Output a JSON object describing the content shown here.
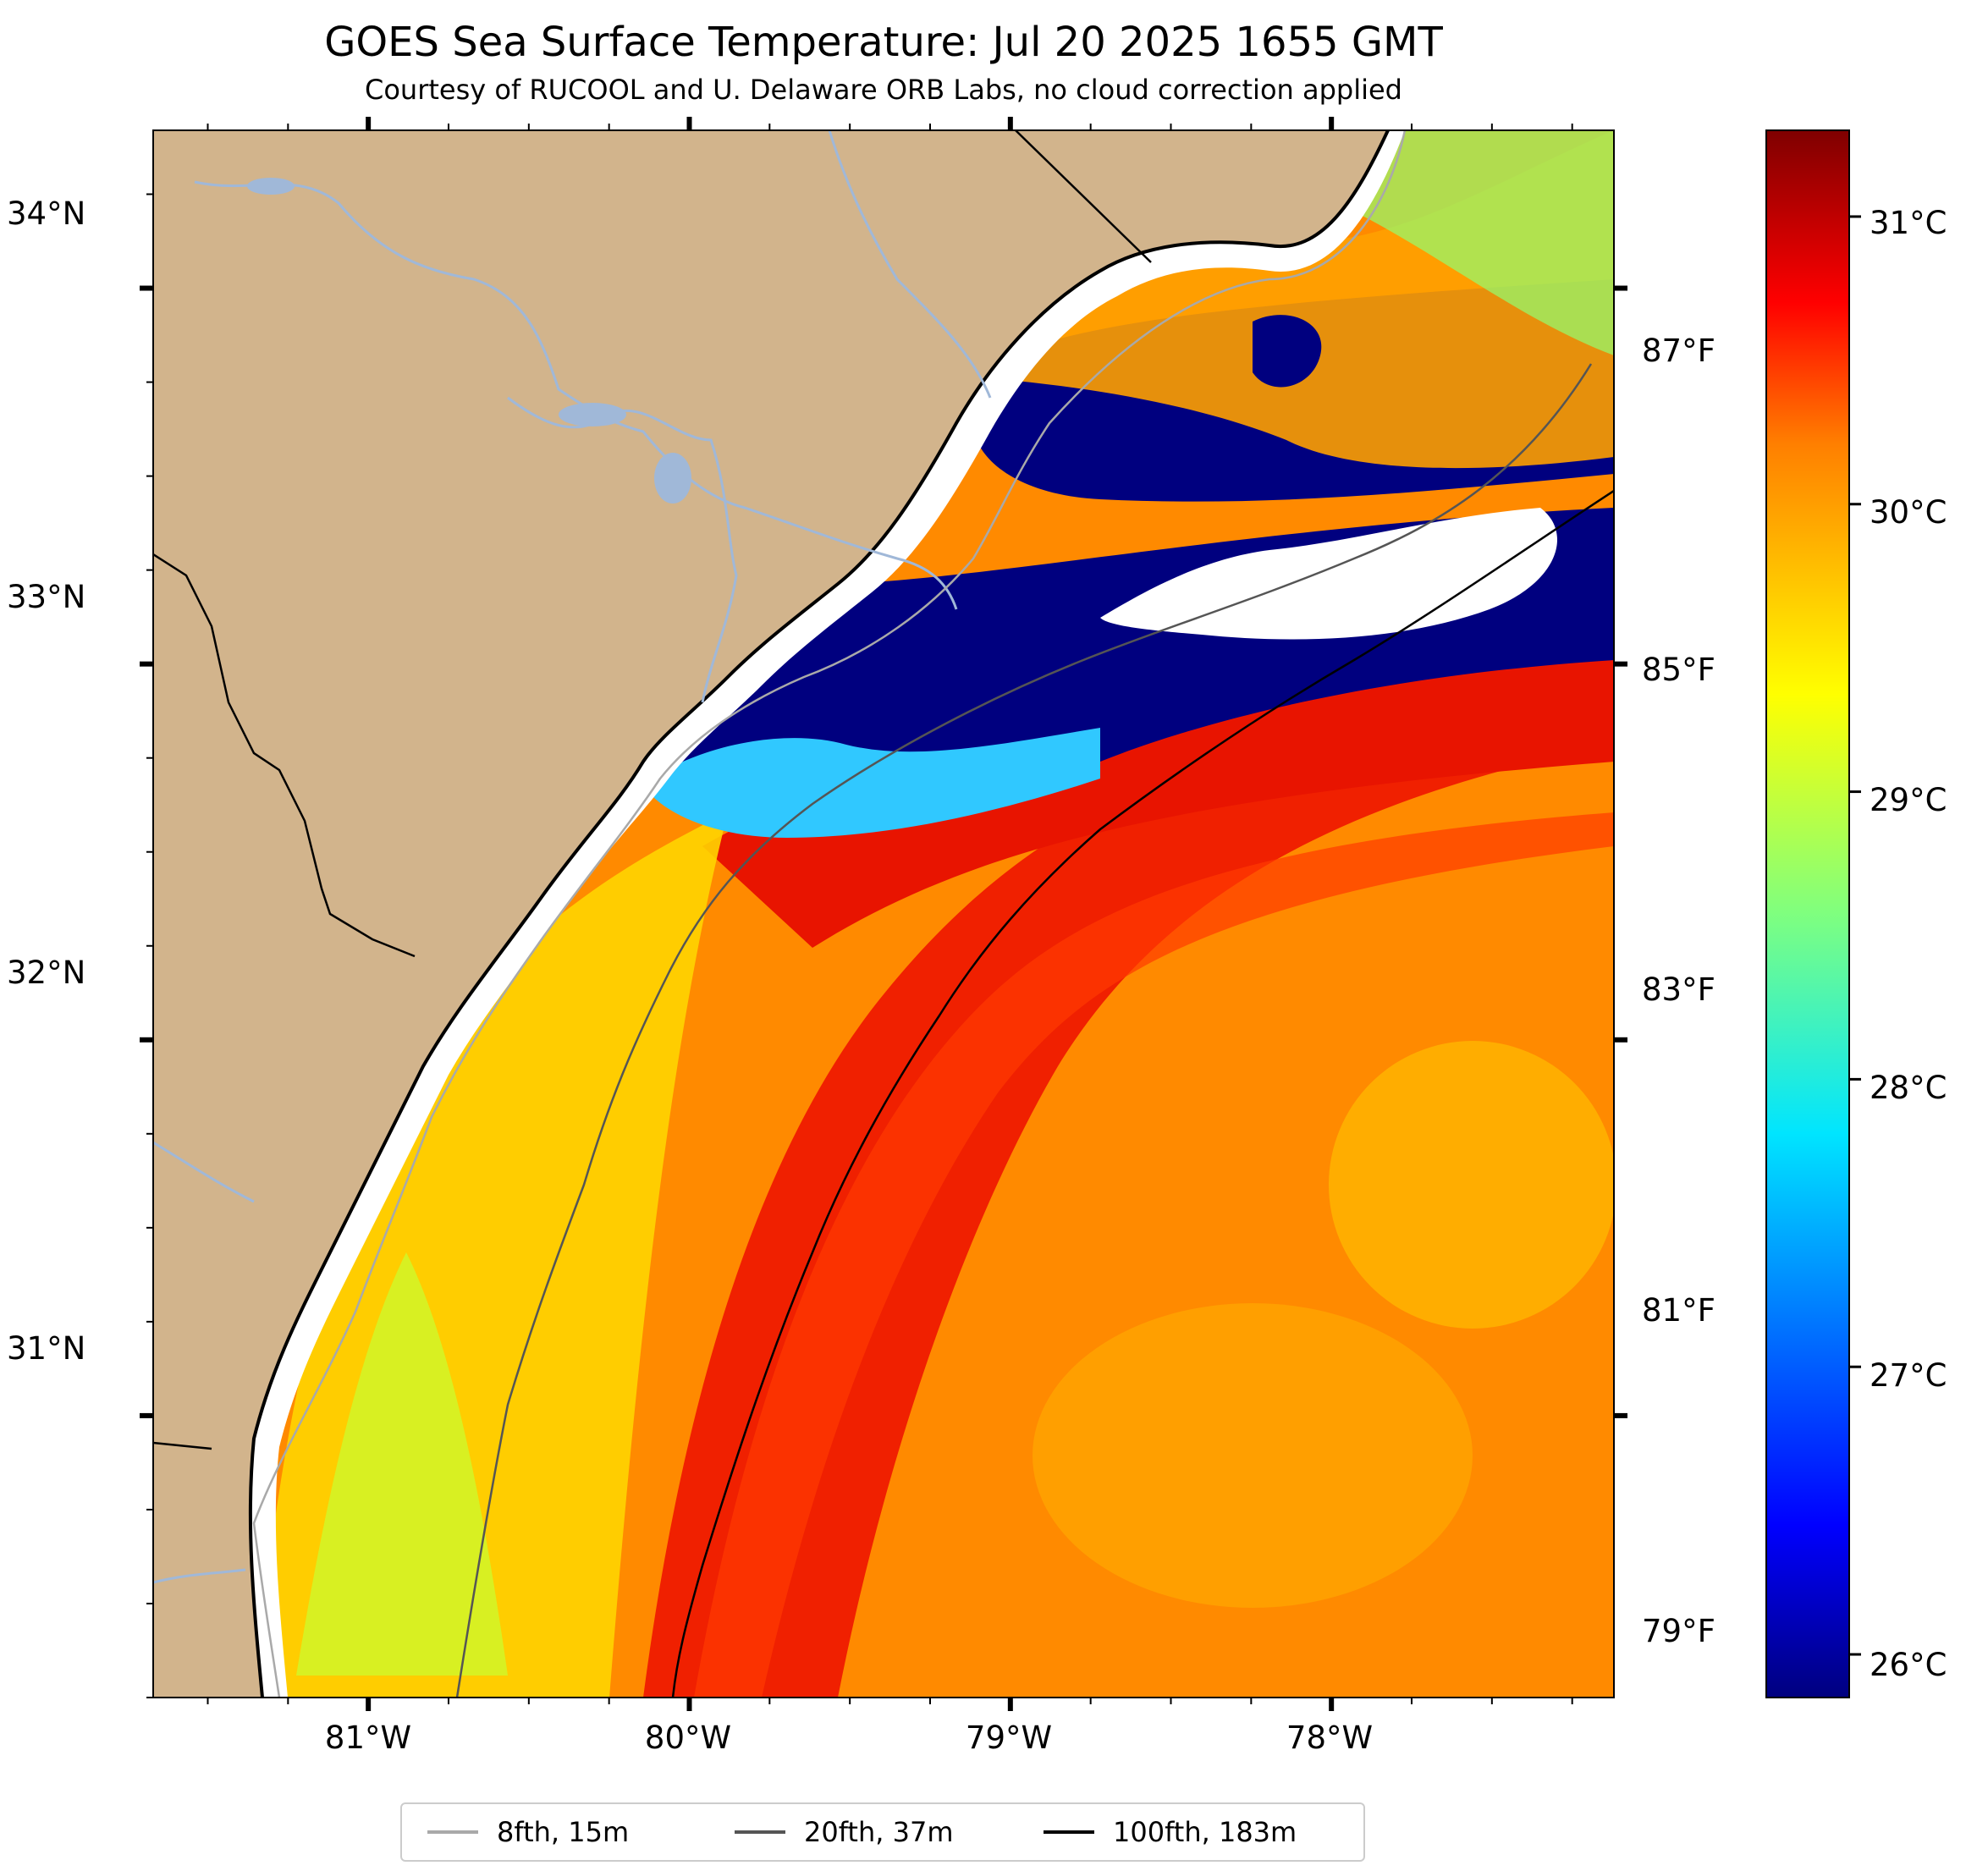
{
  "title": "GOES Sea Surface Temperature: Jul 20 2025 1655 GMT",
  "subtitle": "Courtesy of RUCOOL and U. Delaware ORB Labs, no cloud correction applied",
  "map": {
    "lat_ticks": [
      {
        "label": "34°N",
        "value": 34
      },
      {
        "label": "33°N",
        "value": 33
      },
      {
        "label": "32°N",
        "value": 32
      },
      {
        "label": "31°N",
        "value": 31
      }
    ],
    "lon_ticks": [
      {
        "label": "81°W",
        "value": -81
      },
      {
        "label": "80°W",
        "value": -80
      },
      {
        "label": "79°W",
        "value": -79
      },
      {
        "label": "78°W",
        "value": -78
      }
    ],
    "lon_range": [
      -81.67,
      -77.12
    ],
    "lat_range": [
      30.25,
      34.42
    ],
    "colors": {
      "land": "#d2b48c",
      "rivers": "#a0b8d8",
      "no_data": "#ffffff"
    }
  },
  "fahrenheit_ticks": [
    {
      "label": "87°F",
      "value": 87
    },
    {
      "label": "85°F",
      "value": 85
    },
    {
      "label": "83°F",
      "value": 83
    },
    {
      "label": "81°F",
      "value": 81
    },
    {
      "label": "79°F",
      "value": 79
    }
  ],
  "colorbar": {
    "range_c": [
      25.85,
      31.3
    ],
    "colormap": "jet",
    "ticks": [
      {
        "label": "31°C",
        "value": 31
      },
      {
        "label": "30°C",
        "value": 30
      },
      {
        "label": "29°C",
        "value": 29
      },
      {
        "label": "28°C",
        "value": 28
      },
      {
        "label": "27°C",
        "value": 27
      },
      {
        "label": "26°C",
        "value": 26
      }
    ]
  },
  "legend": {
    "items": [
      {
        "label": "8fth, 15m",
        "color": "#a9a9a9"
      },
      {
        "label": "20fth, 37m",
        "color": "#555555"
      },
      {
        "label": "100fth, 183m",
        "color": "#000000"
      }
    ]
  }
}
